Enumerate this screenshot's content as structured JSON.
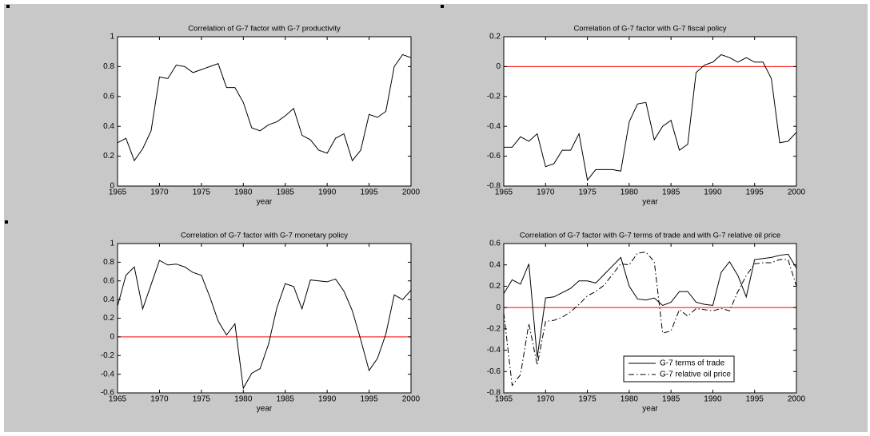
{
  "chart_data": [
    {
      "type": "line",
      "title": "Correlation of G-7 factor with G-7 productivity",
      "xlabel": "year",
      "x": [
        1965,
        1966,
        1967,
        1968,
        1969,
        1970,
        1971,
        1972,
        1973,
        1974,
        1975,
        1976,
        1977,
        1978,
        1979,
        1980,
        1981,
        1982,
        1983,
        1984,
        1985,
        1986,
        1987,
        1988,
        1989,
        1990,
        1991,
        1992,
        1993,
        1994,
        1995,
        1996,
        1997,
        1998,
        1999,
        2000
      ],
      "series": [
        {
          "color": "#000000",
          "line_style": "solid",
          "values": [
            0.29,
            0.32,
            0.17,
            0.25,
            0.37,
            0.73,
            0.72,
            0.81,
            0.8,
            0.76,
            0.78,
            0.8,
            0.82,
            0.66,
            0.66,
            0.56,
            0.39,
            0.37,
            0.41,
            0.43,
            0.47,
            0.52,
            0.34,
            0.31,
            0.24,
            0.22,
            0.32,
            0.35,
            0.17,
            0.24,
            0.48,
            0.46,
            0.5,
            0.8,
            0.88,
            0.86
          ]
        }
      ],
      "xlim": [
        1965,
        2000
      ],
      "xticks": [
        1965,
        1970,
        1975,
        1980,
        1985,
        1990,
        1995,
        2000
      ],
      "ylim": [
        0,
        1
      ],
      "yticks": [
        0,
        0.2,
        0.4,
        0.6,
        0.8,
        1
      ],
      "hline": 0,
      "hline_color": "#ff0000"
    },
    {
      "type": "line",
      "title": "Correlation of G-7 factor with G-7 fiscal policy",
      "xlabel": "year",
      "x": [
        1965,
        1966,
        1967,
        1968,
        1969,
        1970,
        1971,
        1972,
        1973,
        1974,
        1975,
        1976,
        1977,
        1978,
        1979,
        1980,
        1981,
        1982,
        1983,
        1984,
        1985,
        1986,
        1987,
        1988,
        1989,
        1990,
        1991,
        1992,
        1993,
        1994,
        1995,
        1996,
        1997,
        1998,
        1999,
        2000
      ],
      "series": [
        {
          "color": "#000000",
          "line_style": "solid",
          "values": [
            -0.54,
            -0.54,
            -0.47,
            -0.5,
            -0.45,
            -0.67,
            -0.65,
            -0.56,
            -0.56,
            -0.45,
            -0.76,
            -0.69,
            -0.69,
            -0.69,
            -0.7,
            -0.37,
            -0.25,
            -0.24,
            -0.49,
            -0.4,
            -0.36,
            -0.56,
            -0.52,
            -0.04,
            0.01,
            0.03,
            0.08,
            0.06,
            0.03,
            0.06,
            0.03,
            0.03,
            -0.08,
            -0.51,
            -0.5,
            -0.44
          ]
        }
      ],
      "xlim": [
        1965,
        2000
      ],
      "xticks": [
        1965,
        1970,
        1975,
        1980,
        1985,
        1990,
        1995,
        2000
      ],
      "ylim": [
        -0.8,
        0.2
      ],
      "yticks": [
        -0.8,
        -0.6,
        -0.4,
        -0.2,
        0,
        0.2
      ],
      "hline": 0,
      "hline_color": "#ff0000"
    },
    {
      "type": "line",
      "title": "Correlation of G-7 factor with G-7 monetary policy",
      "xlabel": "year",
      "x": [
        1965,
        1966,
        1967,
        1968,
        1969,
        1970,
        1971,
        1972,
        1973,
        1974,
        1975,
        1976,
        1977,
        1978,
        1979,
        1980,
        1981,
        1982,
        1983,
        1984,
        1985,
        1986,
        1987,
        1988,
        1989,
        1990,
        1991,
        1992,
        1993,
        1994,
        1995,
        1996,
        1997,
        1998,
        1999,
        2000
      ],
      "series": [
        {
          "color": "#000000",
          "line_style": "solid",
          "values": [
            0.33,
            0.66,
            0.75,
            0.3,
            0.56,
            0.82,
            0.77,
            0.78,
            0.75,
            0.69,
            0.66,
            0.43,
            0.17,
            0.02,
            0.14,
            -0.55,
            -0.39,
            -0.34,
            -0.08,
            0.31,
            0.57,
            0.54,
            0.3,
            0.61,
            0.6,
            0.59,
            0.62,
            0.49,
            0.28,
            -0.03,
            -0.36,
            -0.23,
            0.03,
            0.45,
            0.4,
            0.5
          ]
        }
      ],
      "xlim": [
        1965,
        2000
      ],
      "xticks": [
        1965,
        1970,
        1975,
        1980,
        1985,
        1990,
        1995,
        2000
      ],
      "ylim": [
        -0.6,
        1
      ],
      "yticks": [
        -0.6,
        -0.4,
        -0.2,
        0,
        0.2,
        0.4,
        0.6,
        0.8,
        1
      ],
      "hline": 0,
      "hline_color": "#ff0000"
    },
    {
      "type": "line",
      "title": "Correlation of G-7 factor with G-7 terms of trade and with G-7 relative oil price",
      "xlabel": "year",
      "x": [
        1965,
        1966,
        1967,
        1968,
        1969,
        1970,
        1971,
        1972,
        1973,
        1974,
        1975,
        1976,
        1977,
        1978,
        1979,
        1980,
        1981,
        1982,
        1983,
        1984,
        1985,
        1986,
        1987,
        1988,
        1989,
        1990,
        1991,
        1992,
        1993,
        1994,
        1995,
        1996,
        1997,
        1998,
        1999,
        2000
      ],
      "series": [
        {
          "name": "G-7 terms of trade",
          "color": "#000000",
          "line_style": "solid",
          "values": [
            0.13,
            0.26,
            0.22,
            0.41,
            -0.47,
            0.09,
            0.1,
            0.14,
            0.18,
            0.25,
            0.25,
            0.23,
            0.31,
            0.39,
            0.47,
            0.2,
            0.08,
            0.07,
            0.09,
            0.02,
            0.05,
            0.15,
            0.15,
            0.05,
            0.03,
            0.02,
            0.33,
            0.43,
            0.3,
            0.1,
            0.45,
            0.46,
            0.47,
            0.49,
            0.5,
            0.37
          ]
        },
        {
          "name": "G-7 relative oil price",
          "color": "#000000",
          "line_style": "dashdot",
          "values": [
            -0.05,
            -0.73,
            -0.63,
            -0.15,
            -0.54,
            -0.13,
            -0.12,
            -0.09,
            -0.04,
            0.03,
            0.11,
            0.15,
            0.21,
            0.31,
            0.41,
            0.4,
            0.51,
            0.52,
            0.43,
            -0.24,
            -0.22,
            -0.02,
            -0.08,
            -0.01,
            -0.02,
            -0.03,
            -0.01,
            -0.03,
            0.15,
            0.3,
            0.41,
            0.42,
            0.42,
            0.45,
            0.45,
            0.2
          ]
        }
      ],
      "xlim": [
        1965,
        2000
      ],
      "xticks": [
        1965,
        1970,
        1975,
        1980,
        1985,
        1990,
        1995,
        2000
      ],
      "ylim": [
        -0.8,
        0.6
      ],
      "yticks": [
        -0.8,
        -0.6,
        -0.4,
        -0.2,
        0,
        0.2,
        0.4,
        0.6
      ],
      "hline": 0,
      "hline_color": "#ff0000",
      "legend": "lower-right"
    }
  ]
}
